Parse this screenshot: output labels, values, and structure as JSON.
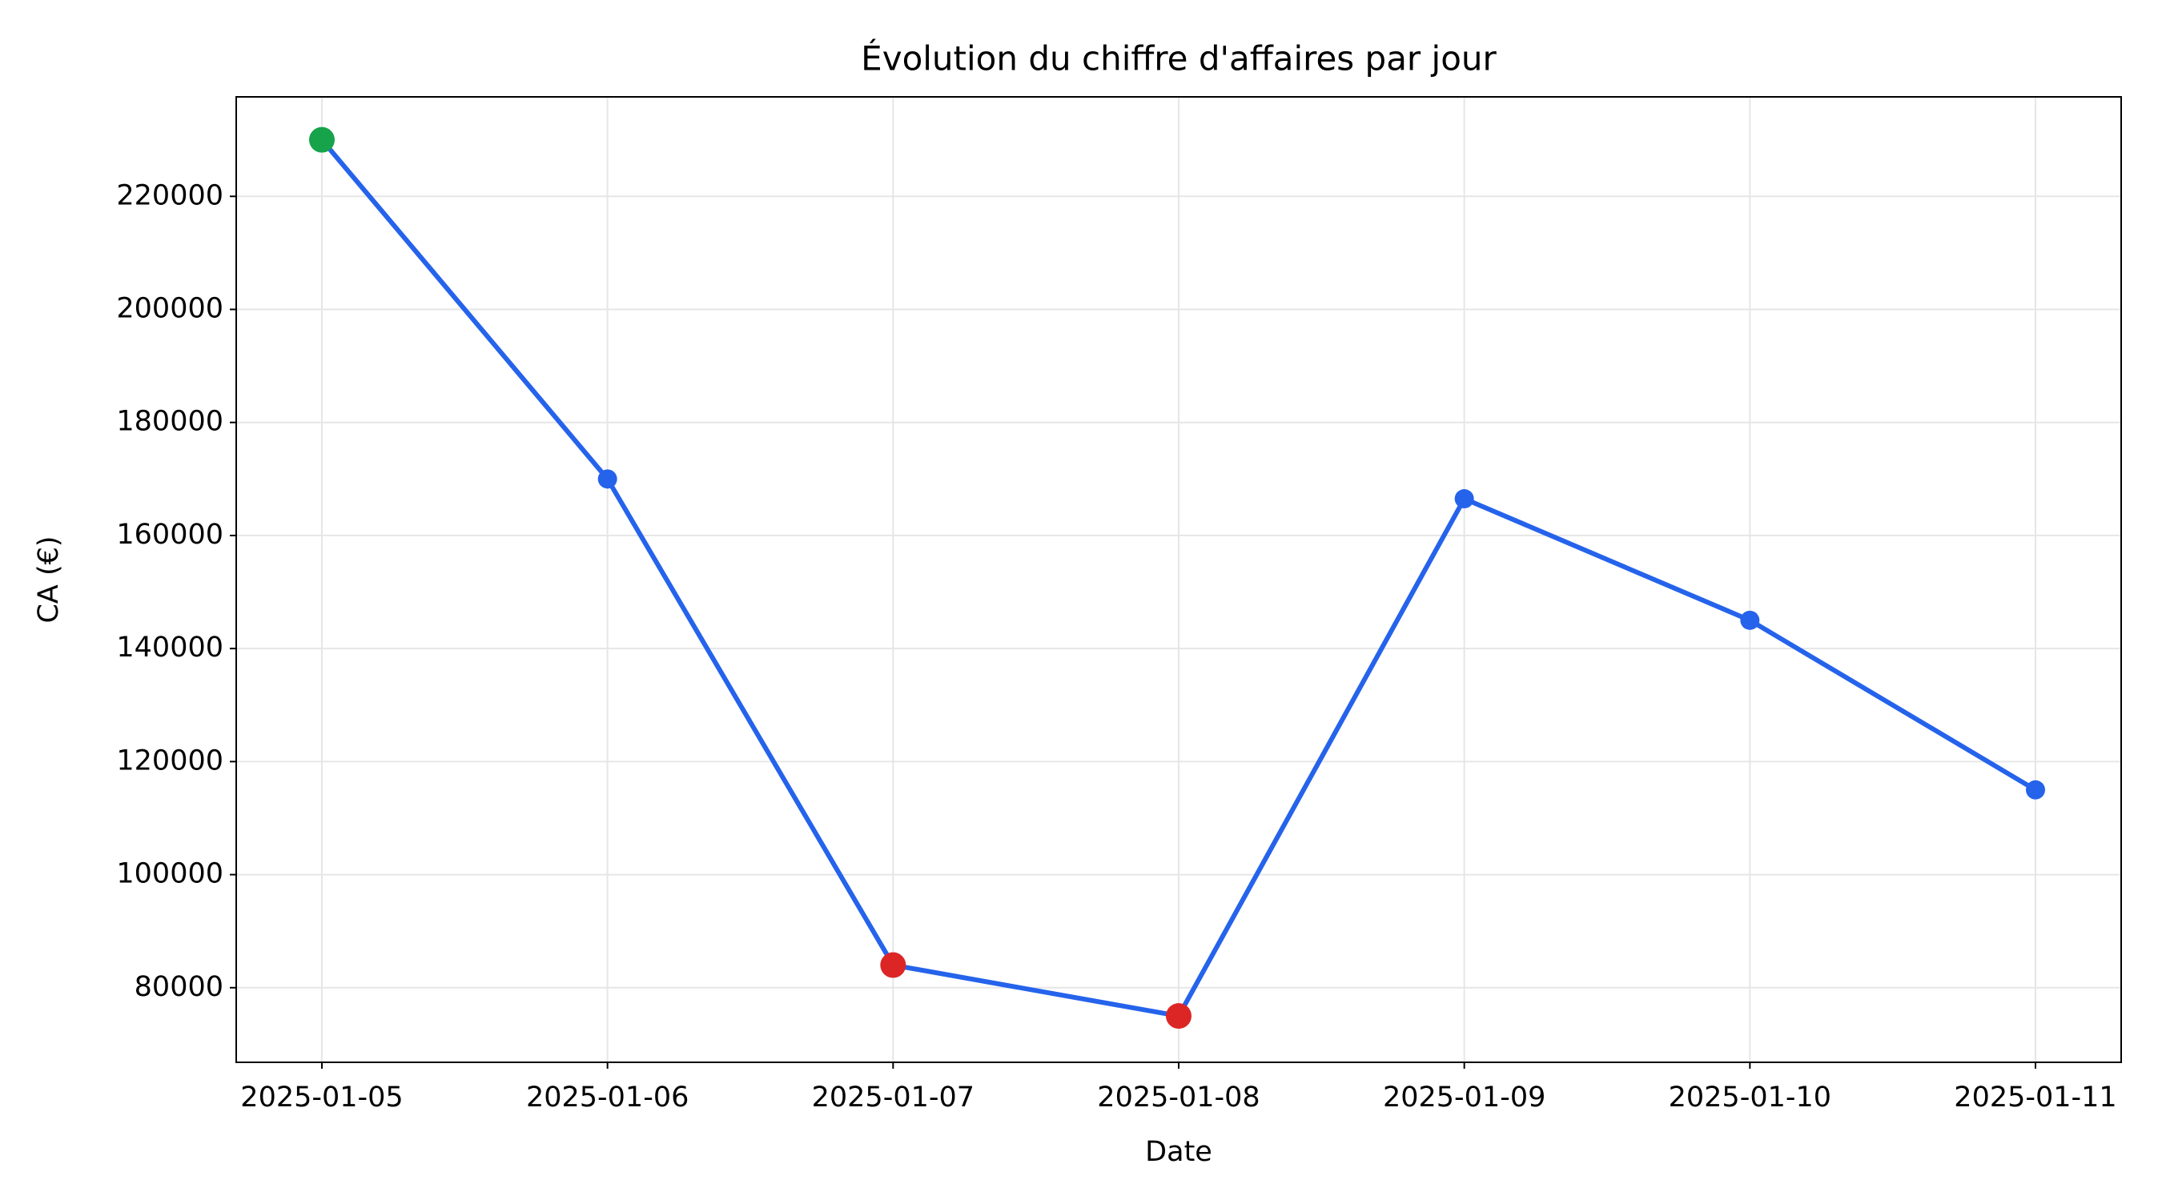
{
  "chart_data": {
    "type": "line",
    "title": "Évolution du chiffre d'affaires par jour",
    "x_label": "Date",
    "y_label": "CA (€)",
    "categories": [
      "2025-01-05",
      "2025-01-06",
      "2025-01-07",
      "2025-01-08",
      "2025-01-09",
      "2025-01-10",
      "2025-01-11"
    ],
    "series": [
      {
        "name": "CA",
        "color": "#2563eb",
        "values": [
          230000,
          170000,
          84000,
          75000,
          166500,
          145000,
          115000
        ],
        "marker_colors": [
          "#16a34a",
          "#2563eb",
          "#dc2626",
          "#dc2626",
          "#2563eb",
          "#2563eb",
          "#2563eb"
        ]
      }
    ],
    "ylim": [
      66800,
      237600
    ],
    "yticks": [
      80000,
      100000,
      120000,
      140000,
      160000,
      180000,
      200000,
      220000
    ],
    "grid": true
  }
}
